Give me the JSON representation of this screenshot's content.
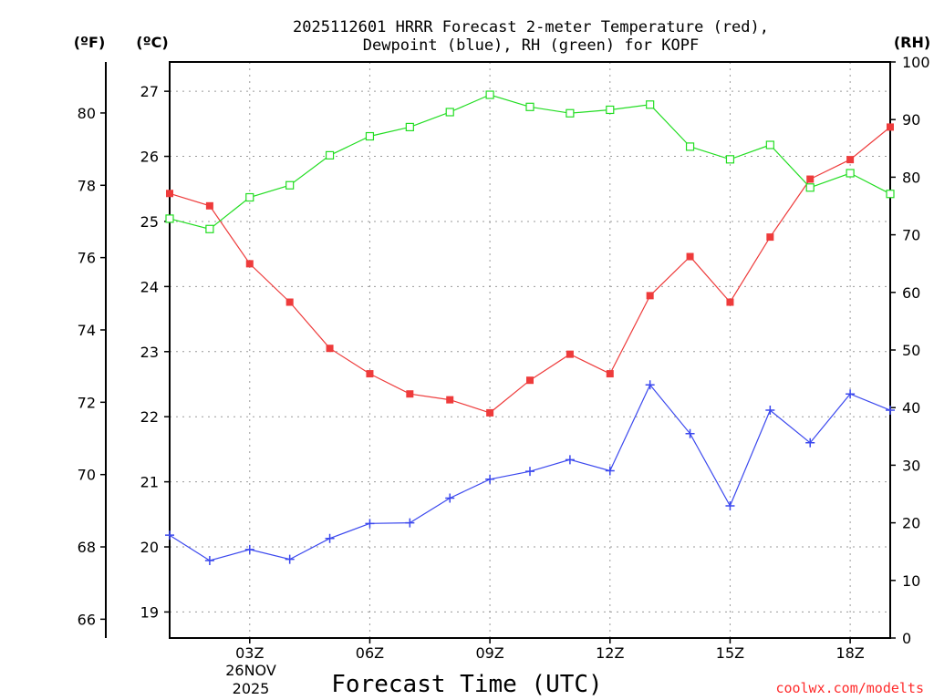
{
  "chart_data": {
    "type": "line",
    "title_line1": "2025112601 HRRR Forecast 2-meter Temperature (red),",
    "title_line2": "Dewpoint (blue), RH (green) for KOPF",
    "xlabel": "Forecast Time (UTC)",
    "date_label_line1": "26NOV",
    "date_label_line2": "2025",
    "source": "coolwx.com/modelts",
    "units": {
      "fahrenheit": "(ºF)",
      "celsius": "(ºC)",
      "rh": "(RH)"
    },
    "x_hours": [
      1,
      2,
      3,
      4,
      5,
      6,
      7,
      8,
      9,
      10,
      11,
      12,
      13,
      14,
      15,
      16,
      17,
      18,
      19
    ],
    "x_range": [
      1,
      19
    ],
    "x_ticks": [
      {
        "hour": 3,
        "label": "03Z"
      },
      {
        "hour": 6,
        "label": "06Z"
      },
      {
        "hour": 9,
        "label": "09Z"
      },
      {
        "hour": 12,
        "label": "12Z"
      },
      {
        "hour": 15,
        "label": "15Z"
      },
      {
        "hour": 18,
        "label": "18Z"
      }
    ],
    "celsius_range": [
      18.6,
      27.45
    ],
    "celsius_ticks": [
      "19",
      "20",
      "21",
      "22",
      "23",
      "24",
      "25",
      "26",
      "27"
    ],
    "fahrenheit_ticks": [
      "66",
      "68",
      "70",
      "72",
      "74",
      "76",
      "78",
      "80"
    ],
    "rh_range": [
      0,
      100
    ],
    "rh_ticks": [
      "0",
      "10",
      "20",
      "30",
      "40",
      "50",
      "60",
      "70",
      "80",
      "90",
      "100"
    ],
    "series": [
      {
        "name": "Temperature",
        "color": "#ee3b3b",
        "marker": "filled-square",
        "axis": "celsius",
        "values": [
          25.43,
          25.24,
          24.35,
          23.76,
          23.05,
          22.66,
          22.35,
          22.26,
          22.06,
          22.56,
          22.96,
          22.66,
          23.86,
          24.46,
          23.76,
          24.76,
          25.65,
          25.95,
          26.45
        ]
      },
      {
        "name": "Dewpoint",
        "color": "#3b48ee",
        "marker": "plus",
        "axis": "celsius",
        "values": [
          20.18,
          19.79,
          19.96,
          19.81,
          20.13,
          20.36,
          20.37,
          20.75,
          21.04,
          21.16,
          21.34,
          21.17,
          22.49,
          21.74,
          20.63,
          22.1,
          21.6,
          22.35,
          22.1
        ]
      },
      {
        "name": "RH",
        "color": "#22dd22",
        "marker": "open-square",
        "axis": "rh",
        "values": [
          72.8,
          71.0,
          76.5,
          78.6,
          83.8,
          87.1,
          88.7,
          91.3,
          94.3,
          92.2,
          91.1,
          91.7,
          92.6,
          85.3,
          83.1,
          85.6,
          78.2,
          80.7,
          77.1
        ]
      }
    ]
  }
}
